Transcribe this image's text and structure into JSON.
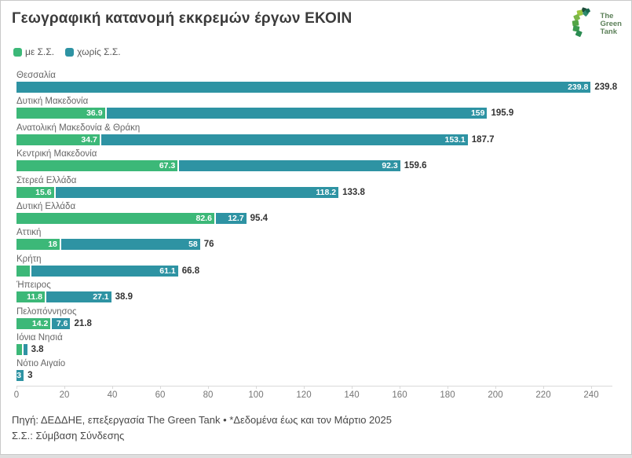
{
  "header": {
    "title": "Γεωγραφική κατανομή εκκρεμών έργων ΕΚΟΙΝ",
    "logo": {
      "lines": [
        "The",
        "Green",
        "Tank"
      ]
    }
  },
  "legend": {
    "items": [
      {
        "label": "με Σ.Σ.",
        "color": "#3cb878"
      },
      {
        "label": "χωρίς Σ.Σ.",
        "color": "#2e93a3"
      }
    ]
  },
  "footer": {
    "source_line": "Πηγή: ΔΕΔΔΗΕ, επεξεργασία The Green Tank • *Δεδομένα έως και τον Μάρτιο 2025",
    "abbreviation_line": "Σ.Σ.: Σύμβαση Σύνδεσης"
  },
  "colors": {
    "me_ss": "#3cb878",
    "xoris_ss": "#2e93a3",
    "axis_line": "#d9d9d9",
    "title_text": "#3b3b3b"
  },
  "chart_data": {
    "type": "bar",
    "orientation": "horizontal",
    "stacked": true,
    "title": "Γεωγραφική κατανομή εκκρεμών έργων ΕΚΟΙΝ",
    "xlabel": "",
    "ylabel": "",
    "xlim": [
      0,
      249
    ],
    "x_ticks": [
      0,
      20,
      40,
      60,
      80,
      100,
      120,
      140,
      160,
      180,
      200,
      220,
      240
    ],
    "grid": false,
    "legend_position": "top-left",
    "categories": [
      "Θεσσαλία",
      "Δυτική Μακεδονία",
      "Ανατολική Μακεδονία & Θράκη",
      "Κεντρική Μακεδονία",
      "Στερεά Ελλάδα",
      "Δυτική Ελλάδα",
      "Αττική",
      "Κρήτη",
      "Ήπειρος",
      "Πελοπόννησος",
      "Ιόνια Νησιά",
      "Νότιο Αιγαίο"
    ],
    "series": [
      {
        "name": "με Σ.Σ.",
        "color": "#3cb878",
        "values": [
          0,
          36.9,
          34.7,
          67.3,
          15.6,
          82.6,
          18,
          5.7,
          11.8,
          14.2,
          2.3,
          0
        ],
        "labels": [
          "",
          "36.9",
          "34.7",
          "67.3",
          "15.6",
          "82.6",
          "18",
          "",
          "11.8",
          "14.2",
          "",
          ""
        ]
      },
      {
        "name": "χωρίς Σ.Σ.",
        "color": "#2e93a3",
        "values": [
          239.8,
          159,
          153.1,
          92.3,
          118.2,
          12.7,
          58,
          61.1,
          27.1,
          7.6,
          1.5,
          3
        ],
        "labels": [
          "239.8",
          "159",
          "153.1",
          "92.3",
          "118.2",
          "12.7",
          "58",
          "61.1",
          "27.1",
          "7.6",
          "",
          "3"
        ]
      }
    ],
    "totals": [
      "239.8",
      "195.9",
      "187.7",
      "159.6",
      "133.8",
      "95.4",
      "76",
      "66.8",
      "38.9",
      "21.8",
      "3.8",
      "3"
    ]
  }
}
